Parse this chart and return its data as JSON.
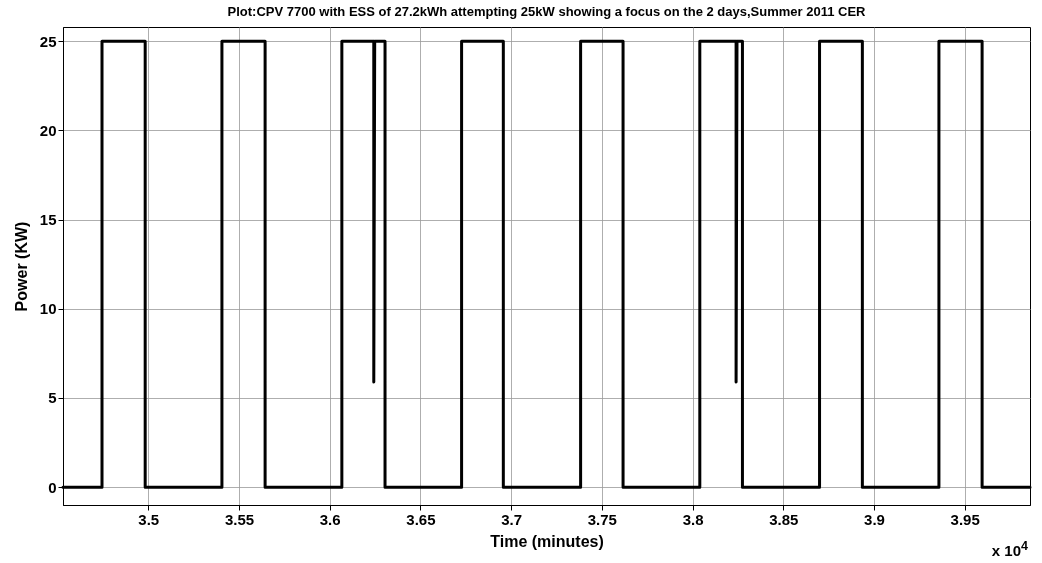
{
  "chart_data": {
    "type": "line",
    "title": "Plot:CPV 7700 with ESS of 27.2kWh attempting 25kW showing a focus on the 2 days,Summer 2011 CER",
    "xlabel": "Time (minutes)",
    "ylabel": "Power (KW)",
    "annotations": [
      "x 10$^{4}$"
    ],
    "series": [
      {
        "color": "#000000",
        "x": [
          3.453,
          3.4745,
          3.4745,
          3.4983,
          3.4983,
          3.5406,
          3.5406,
          3.5644,
          3.5644,
          3.6067,
          3.6067,
          3.6243,
          3.6243,
          3.6248,
          3.6305,
          3.6305,
          3.6727,
          3.6727,
          3.6957,
          3.6957,
          3.7383,
          3.7383,
          3.7617,
          3.7617,
          3.804,
          3.804,
          3.824,
          3.824,
          3.8245,
          3.8275,
          3.8275,
          3.87,
          3.87,
          3.8936,
          3.8936,
          3.9358,
          3.9358,
          3.9596,
          3.9596,
          3.986
        ],
        "values": [
          0,
          0,
          25,
          25,
          0,
          0,
          25,
          25,
          0,
          0,
          25,
          25,
          5.9,
          25,
          25,
          0,
          0,
          25,
          25,
          0,
          0,
          25,
          25,
          0,
          0,
          25,
          25,
          5.9,
          25,
          25,
          0,
          0,
          25,
          25,
          0,
          0,
          25,
          25,
          0,
          0
        ]
      }
    ],
    "xlim": [
      3.453,
      3.986
    ],
    "xticks": [
      3.5,
      3.55,
      3.6,
      3.65,
      3.7,
      3.75,
      3.8,
      3.85,
      3.9,
      3.95
    ],
    "ylim": [
      -1,
      25.8
    ],
    "yticks": [
      0,
      5,
      10,
      15,
      20,
      25
    ],
    "grid": true,
    "marker": "none",
    "line_style": "solid"
  }
}
